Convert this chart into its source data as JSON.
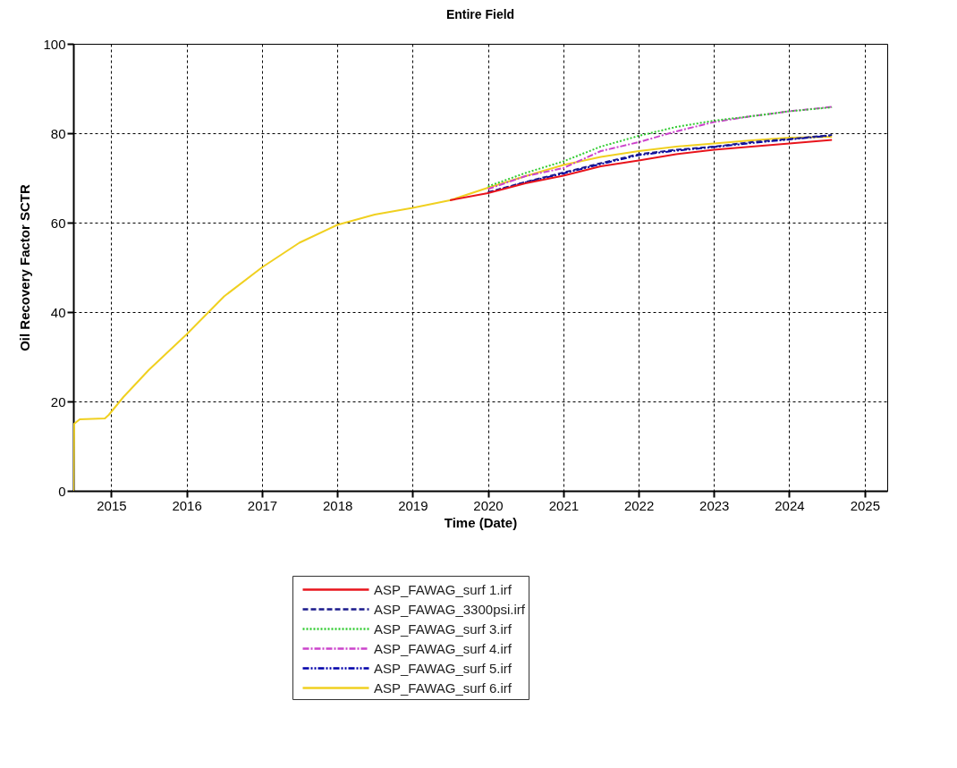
{
  "chart_data": {
    "type": "line",
    "title": "Entire  Field",
    "xlabel": "Time (Date)",
    "ylabel": "Oil Recovery Factor SCTR",
    "x": [
      "2014-07-01",
      "2014-07-05",
      "2014-08-01",
      "2014-12-01",
      "2014-12-20",
      "2015-03-01",
      "2015-07-01",
      "2016-01-01",
      "2016-07-01",
      "2017-01-01",
      "2017-07-01",
      "2018-01-01",
      "2018-07-01",
      "2019-01-01",
      "2019-07-01",
      "2020-01-01",
      "2020-07-01",
      "2021-01-01",
      "2021-07-01",
      "2022-01-01",
      "2022-07-01",
      "2023-01-01",
      "2023-07-01",
      "2024-01-01",
      "2024-07-26"
    ],
    "series": [
      {
        "name": "ASP_FAWAG_surf 1.irf",
        "color": "#e8141c",
        "line_style": "solid",
        "values": [
          null,
          null,
          null,
          null,
          null,
          null,
          null,
          null,
          null,
          null,
          null,
          null,
          null,
          null,
          65,
          66.6,
          68.8,
          70.5,
          72.6,
          73.9,
          75.3,
          76.3,
          77.0,
          77.7,
          78.5
        ]
      },
      {
        "name": "ASP_FAWAG_3300psi.irf",
        "color": "#1a1a8c",
        "line_style": "dashed",
        "values": [
          null,
          null,
          null,
          null,
          null,
          null,
          null,
          null,
          null,
          null,
          null,
          null,
          null,
          null,
          null,
          66.8,
          69.1,
          71.2,
          73.3,
          75.3,
          76.3,
          77.0,
          78.0,
          78.7,
          79.6
        ]
      },
      {
        "name": "ASP_FAWAG_surf 3.irf",
        "color": "#33cc33",
        "line_style": "dotted",
        "values": [
          null,
          null,
          null,
          null,
          null,
          null,
          null,
          null,
          null,
          null,
          null,
          null,
          null,
          null,
          null,
          68.1,
          71.1,
          73.7,
          77.0,
          79.4,
          81.4,
          82.8,
          83.8,
          84.9,
          85.8
        ]
      },
      {
        "name": "ASP_FAWAG_surf 4.irf",
        "color": "#cc44cc",
        "line_style": "dashdot",
        "values": [
          null,
          null,
          null,
          null,
          null,
          null,
          null,
          null,
          null,
          null,
          null,
          null,
          null,
          null,
          null,
          67.5,
          70.4,
          72.2,
          76.0,
          78.0,
          80.4,
          82.5,
          83.8,
          84.9,
          85.9
        ]
      },
      {
        "name": "ASP_FAWAG_surf 5.irf",
        "color": "#0000aa",
        "line_style": "dashdotdot",
        "values": [
          null,
          null,
          null,
          null,
          null,
          null,
          null,
          null,
          null,
          null,
          null,
          null,
          null,
          null,
          null,
          66.7,
          69.0,
          71.0,
          73.1,
          75.1,
          76.1,
          76.9,
          77.8,
          78.6,
          79.5
        ]
      },
      {
        "name": "ASP_FAWAG_surf 6.irf",
        "color": "#f0d020",
        "line_style": "solid",
        "values": [
          0,
          15,
          16,
          16.2,
          17,
          21,
          27,
          35,
          43.5,
          50,
          55.5,
          59.5,
          61.8,
          63.3,
          65,
          67.8,
          70.4,
          72.9,
          74.7,
          76.0,
          77.0,
          77.7,
          78.4,
          79.0,
          79.2
        ]
      }
    ],
    "xlim": [
      "2014-07-01",
      "2025-04-20"
    ],
    "xticks": [
      "2015",
      "2016",
      "2017",
      "2018",
      "2019",
      "2020",
      "2021",
      "2022",
      "2023",
      "2024",
      "2025"
    ],
    "ylim": [
      0,
      100
    ],
    "yticks": [
      0,
      20,
      40,
      60,
      80,
      100
    ],
    "grid": true,
    "legend": "bottom"
  }
}
